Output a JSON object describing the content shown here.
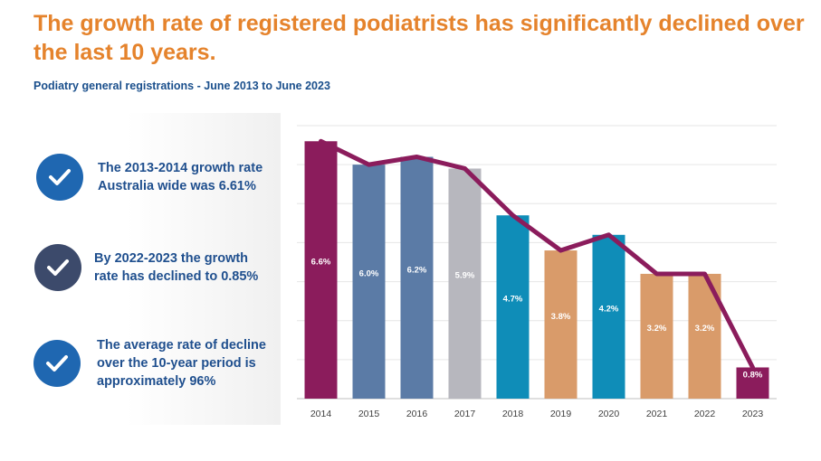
{
  "header": {
    "title": "The growth rate of registered podiatrists has significantly declined over the last 10 years.",
    "subtitle": "Podiatry general registrations - June 2013 to June 2023"
  },
  "callouts": [
    {
      "text": "The 2013-2014 growth rate Australia wide was 6.61%",
      "icon": "checkmark-icon",
      "color": "#1f67b1"
    },
    {
      "text": "By 2022-2023 the growth rate has declined to 0.85%",
      "icon": "checkmark-icon",
      "color": "#3c4a6b"
    },
    {
      "text": "The average rate of decline over the 10-year period is approximately 96%",
      "icon": "checkmark-icon",
      "color": "#1f67b1"
    }
  ],
  "chart_data": {
    "type": "bar",
    "categories": [
      "2014",
      "2015",
      "2016",
      "2017",
      "2018",
      "2019",
      "2020",
      "2021",
      "2022",
      "2023"
    ],
    "values": [
      6.6,
      6.0,
      6.2,
      5.9,
      4.7,
      3.8,
      4.2,
      3.2,
      3.2,
      0.8
    ],
    "labels": [
      "6.6%",
      "6.0%",
      "6.2%",
      "5.9%",
      "4.7%",
      "3.8%",
      "4.2%",
      "3.2%",
      "3.2%",
      "0.8%"
    ],
    "bar_colors": [
      "#8b1c5c",
      "#5b7ba6",
      "#5b7ba6",
      "#b7b7be",
      "#0f8db8",
      "#d99b6a",
      "#0f8db8",
      "#d99b6a",
      "#d99b6a",
      "#8b1c5c"
    ],
    "line_series": {
      "values": [
        6.6,
        6.0,
        6.2,
        5.9,
        4.7,
        3.8,
        4.2,
        3.2,
        3.2,
        0.8
      ],
      "color": "#8b1c5c"
    },
    "ylim": [
      0,
      7
    ],
    "grid": true,
    "legend": "none"
  }
}
